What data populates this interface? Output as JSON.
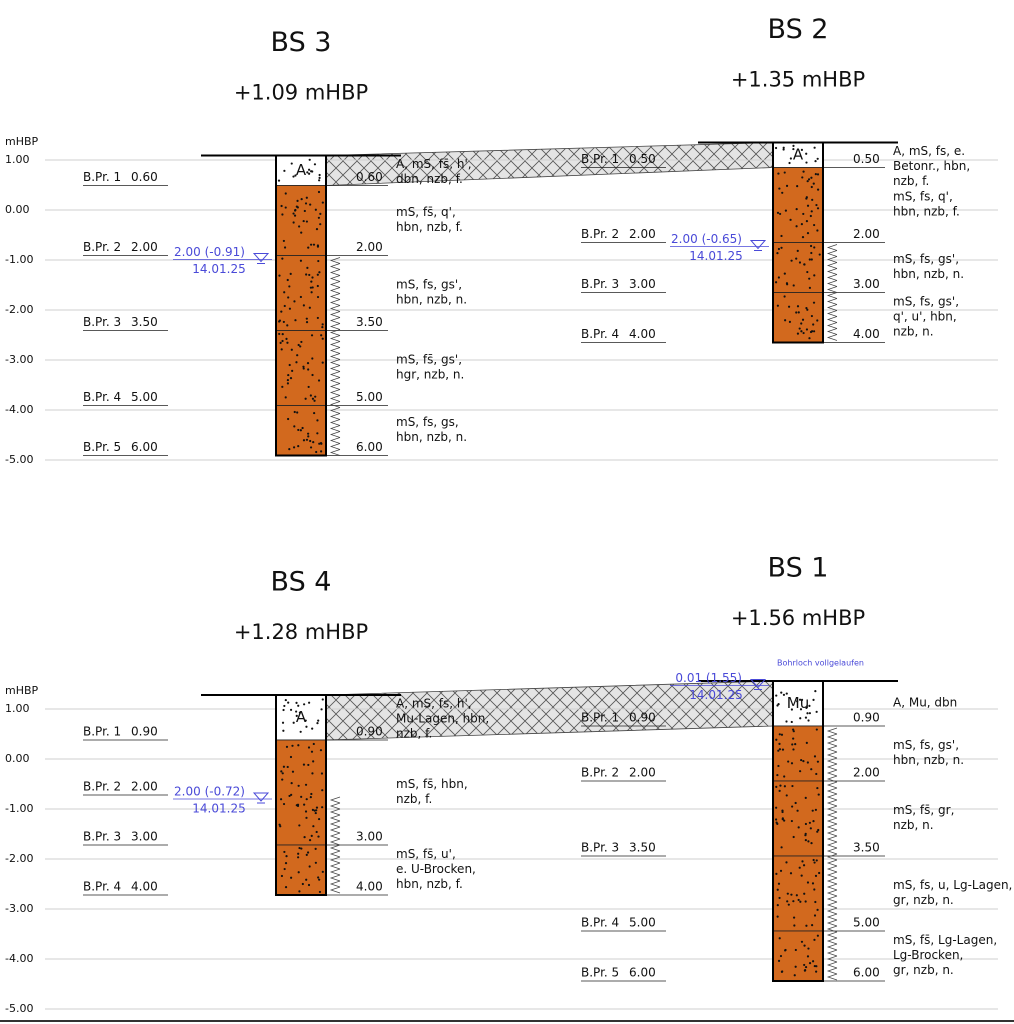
{
  "panels": [
    {
      "axis_label": "mHBP",
      "ticks": [
        "1.00",
        "0.00",
        "-1.00",
        "-2.00",
        "-3.00",
        "-4.00",
        "-5.00"
      ],
      "boreholes": [
        {
          "name": "BS 3",
          "elevation": "+1.09 mHBP",
          "layers": [
            {
              "symbol": "A",
              "to": "0.60",
              "description": [
                "A, mS, fs̄, h',",
                "dbn, nzb, f."
              ]
            },
            {
              "to": "2.00",
              "description": [
                "mS, fs̄, q',",
                "hbn, nzb, f."
              ]
            },
            {
              "to": "3.50",
              "description": [
                "mS, fs, gs',",
                "hbn, nzb, n."
              ]
            },
            {
              "to": "5.00",
              "description": [
                "mS, fs̄, gs',",
                "hgr, nzb, n."
              ]
            },
            {
              "to": "6.00",
              "description": [
                "mS, fs, gs,",
                "hbn, nzb, n."
              ]
            }
          ],
          "samples": [
            {
              "label": "B.Pr. 1",
              "depth": "0.60"
            },
            {
              "label": "B.Pr. 2",
              "depth": "2.00"
            },
            {
              "label": "B.Pr. 3",
              "depth": "3.50"
            },
            {
              "label": "B.Pr. 4",
              "depth": "5.00"
            },
            {
              "label": "B.Pr. 5",
              "depth": "6.00"
            }
          ],
          "groundwater": {
            "level": "2.00 (-0.91)",
            "date": "14.01.25"
          }
        },
        {
          "name": "BS 2",
          "elevation": "+1.35 mHBP",
          "layers": [
            {
              "symbol": "A",
              "to": "0.50",
              "description": [
                "A, mS, fs, e.",
                "Betonr., hbn,",
                "nzb, f."
              ]
            },
            {
              "to": "2.00",
              "description": [
                "mS, fs, q',",
                "hbn, nzb, f."
              ]
            },
            {
              "to": "3.00",
              "description": [
                "mS, fs, gs',",
                "hbn, nzb, n."
              ]
            },
            {
              "to": "4.00",
              "description": [
                "mS, fs, gs',",
                "q', u', hbn,",
                "nzb, n."
              ]
            }
          ],
          "samples": [
            {
              "label": "B.Pr. 1",
              "depth": "0.50"
            },
            {
              "label": "B.Pr. 2",
              "depth": "2.00"
            },
            {
              "label": "B.Pr. 3",
              "depth": "3.00"
            },
            {
              "label": "B.Pr. 4",
              "depth": "4.00"
            }
          ],
          "groundwater": {
            "level": "2.00 (-0.65)",
            "date": "14.01.25"
          }
        }
      ]
    },
    {
      "axis_label": "mHBP",
      "ticks": [
        "1.00",
        "0.00",
        "-1.00",
        "-2.00",
        "-3.00",
        "-4.00",
        "-5.00"
      ],
      "boreholes": [
        {
          "name": "BS 4",
          "elevation": "+1.28 mHBP",
          "layers": [
            {
              "symbol": "A",
              "to": "0.90",
              "description": [
                "A, mS, fs, h',",
                "Mu-Lagen, hbn,",
                "nzb, f."
              ]
            },
            {
              "to": "3.00",
              "description": [
                "mS, fs̄, hbn,",
                "nzb, f."
              ]
            },
            {
              "to": "4.00",
              "description": [
                "mS, fs̄, u',",
                "e. U-Brocken,",
                "hbn, nzb, f."
              ]
            }
          ],
          "samples": [
            {
              "label": "B.Pr. 1",
              "depth": "0.90"
            },
            {
              "label": "B.Pr. 2",
              "depth": "2.00"
            },
            {
              "label": "B.Pr. 3",
              "depth": "3.00"
            },
            {
              "label": "B.Pr. 4",
              "depth": "4.00"
            }
          ],
          "groundwater": {
            "level": "2.00 (-0.72)",
            "date": "14.01.25"
          }
        },
        {
          "name": "BS 1",
          "elevation": "+1.56 mHBP",
          "layers": [
            {
              "symbol": "Mu",
              "to": "0.90",
              "description": [
                "A, Mu, dbn"
              ]
            },
            {
              "to": "2.00",
              "description": [
                "mS, fs, gs',",
                "hbn, nzb, n."
              ]
            },
            {
              "to": "3.50",
              "description": [
                "mS, fs̄, gr,",
                "nzb, n."
              ]
            },
            {
              "to": "5.00",
              "description": [
                "mS, fs, u, Lg-Lagen,",
                "gr, nzb, n."
              ]
            },
            {
              "to": "6.00",
              "description": [
                "mS, fs̄, Lg-Lagen,",
                "Lg-Brocken,",
                "gr, nzb, n."
              ]
            }
          ],
          "samples": [
            {
              "label": "B.Pr. 1",
              "depth": "0.90"
            },
            {
              "label": "B.Pr. 2",
              "depth": "2.00"
            },
            {
              "label": "B.Pr. 3",
              "depth": "3.50"
            },
            {
              "label": "B.Pr. 4",
              "depth": "5.00"
            },
            {
              "label": "B.Pr. 5",
              "depth": "6.00"
            }
          ],
          "groundwater": {
            "level": "0.01 (1.55)",
            "date": "14.01.25"
          },
          "note": "Bohrloch vollgelaufen"
        }
      ]
    }
  ]
}
